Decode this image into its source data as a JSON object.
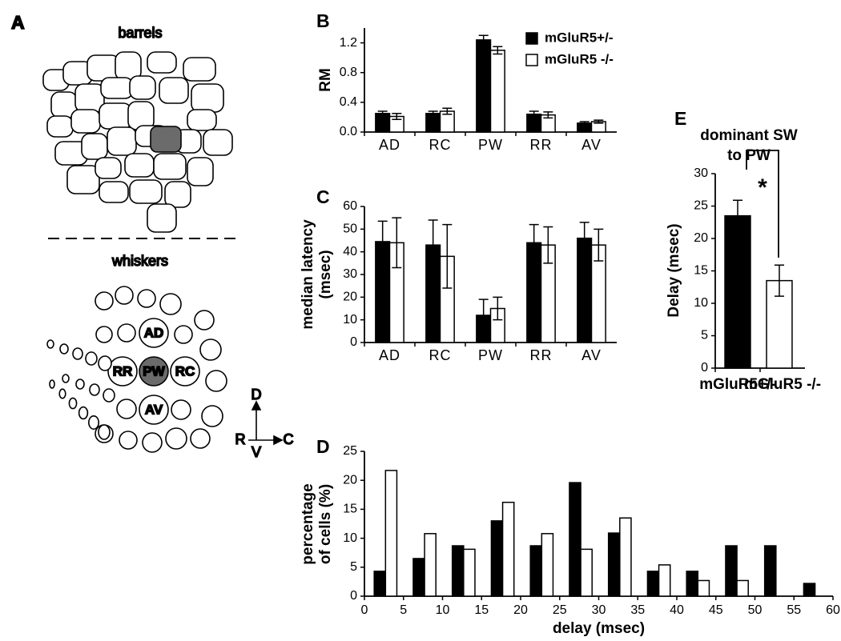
{
  "panel_a": {
    "panel_label": "A",
    "barrels_label": "barrels",
    "whiskers_label": "whiskers",
    "whisker_labels": [
      "AD",
      "RR",
      "PW",
      "RC",
      "AV"
    ],
    "compass": {
      "dorsal": "D",
      "rostral": "R",
      "caudal": "C",
      "ventral": "V"
    }
  },
  "chart_data": [
    {
      "type": "bar",
      "panel_label": "B",
      "ylabel": [
        "RM"
      ],
      "categories": [
        "AD",
        "RC",
        "PW",
        "RR",
        "AV"
      ],
      "series": [
        {
          "name": "mGluR5+/-",
          "color": "#000000",
          "values": [
            0.25,
            0.25,
            1.24,
            0.24,
            0.12
          ],
          "errors": [
            0.03,
            0.03,
            0.06,
            0.04,
            0.02
          ]
        },
        {
          "name": "mGluR5 -/-",
          "color": "#ffffff",
          "values": [
            0.21,
            0.28,
            1.1,
            0.23,
            0.14
          ],
          "errors": [
            0.04,
            0.04,
            0.05,
            0.04,
            0.02
          ]
        }
      ],
      "ylim": [
        0,
        1.4
      ],
      "yticks": [
        {
          "value": 0,
          "label": "0.0"
        },
        0.4,
        0.8,
        1.2
      ],
      "legend": "upper right"
    },
    {
      "type": "bar",
      "panel_label": "C",
      "ylabel": [
        "median latency",
        "(msec)"
      ],
      "categories": [
        "AD",
        "RC",
        "PW",
        "RR",
        "AV"
      ],
      "series": [
        {
          "color": "#000000",
          "values": [
            44.5,
            43,
            12,
            44,
            46
          ],
          "errors": [
            9,
            11,
            7,
            8,
            7
          ]
        },
        {
          "color": "#ffffff",
          "values": [
            44,
            38,
            15,
            43,
            43
          ],
          "errors": [
            11,
            14,
            5,
            8,
            7
          ]
        }
      ],
      "ylim": [
        0,
        60
      ],
      "yticks": [
        0,
        10,
        20,
        30,
        40,
        50,
        60
      ]
    },
    {
      "type": "histogram",
      "panel_label": "D",
      "ylabel": [
        "percentage",
        "of cells (%)"
      ],
      "xlabel": "delay (msec)",
      "bins": [
        0,
        5,
        10,
        15,
        20,
        25,
        30,
        35,
        40,
        45,
        50,
        55,
        60
      ],
      "series": [
        {
          "color": "#000000",
          "values": [
            4.3,
            6.5,
            8.7,
            13,
            8.7,
            19.6,
            10.9,
            4.3,
            4.3,
            8.7,
            8.7,
            2.2
          ]
        },
        {
          "color": "#ffffff",
          "values": [
            21.7,
            10.8,
            8.1,
            16.2,
            10.8,
            8.1,
            13.5,
            5.4,
            2.7,
            2.7,
            0,
            0
          ]
        }
      ],
      "xlim": [
        0,
        60
      ],
      "xticks": [
        0,
        5,
        10,
        15,
        20,
        25,
        30,
        35,
        40,
        45,
        50,
        55,
        60
      ],
      "ylim": [
        0,
        25
      ],
      "yticks": [
        0,
        5,
        10,
        15,
        20,
        25
      ]
    },
    {
      "type": "bar",
      "panel_label": "E",
      "title": [
        "dominant SW",
        "to PW"
      ],
      "ylabel": [
        "Delay (msec)"
      ],
      "categories": [
        "mGluR5+/-",
        "mGluR5 -/-"
      ],
      "values": [
        23.5,
        13.5
      ],
      "errors": [
        2.4,
        2.4
      ],
      "colors": [
        "#000000",
        "#ffffff"
      ],
      "annotation": "*",
      "ylim": [
        0,
        30
      ],
      "yticks": [
        0,
        5,
        10,
        15,
        20,
        25,
        30
      ]
    }
  ]
}
